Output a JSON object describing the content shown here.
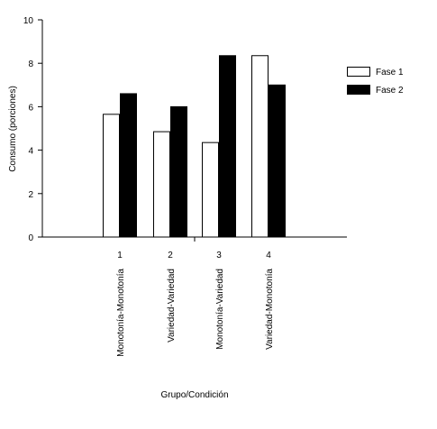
{
  "chart_data": {
    "type": "bar",
    "categories": [
      "1",
      "2",
      "3",
      "4"
    ],
    "group_labels": [
      "Monotonía-Monotonía",
      "Variedad-Variedad",
      "Monotonía-Variedad",
      "Variedad-Monotonía"
    ],
    "series": [
      {
        "name": "Fase 1",
        "values": [
          5.65,
          4.85,
          4.35,
          8.35
        ],
        "color": "#ffffff"
      },
      {
        "name": "Fase 2",
        "values": [
          6.6,
          6.0,
          8.35,
          7.0
        ],
        "color": "#000000"
      }
    ],
    "xlabel": "Grupo/Condición",
    "ylabel": "Consumo (porciones)",
    "ylim": [
      0,
      10
    ],
    "yticks": [
      "0",
      "2",
      "4",
      "6",
      "8",
      "10"
    ],
    "grid": false,
    "legend_position": "top-right"
  }
}
